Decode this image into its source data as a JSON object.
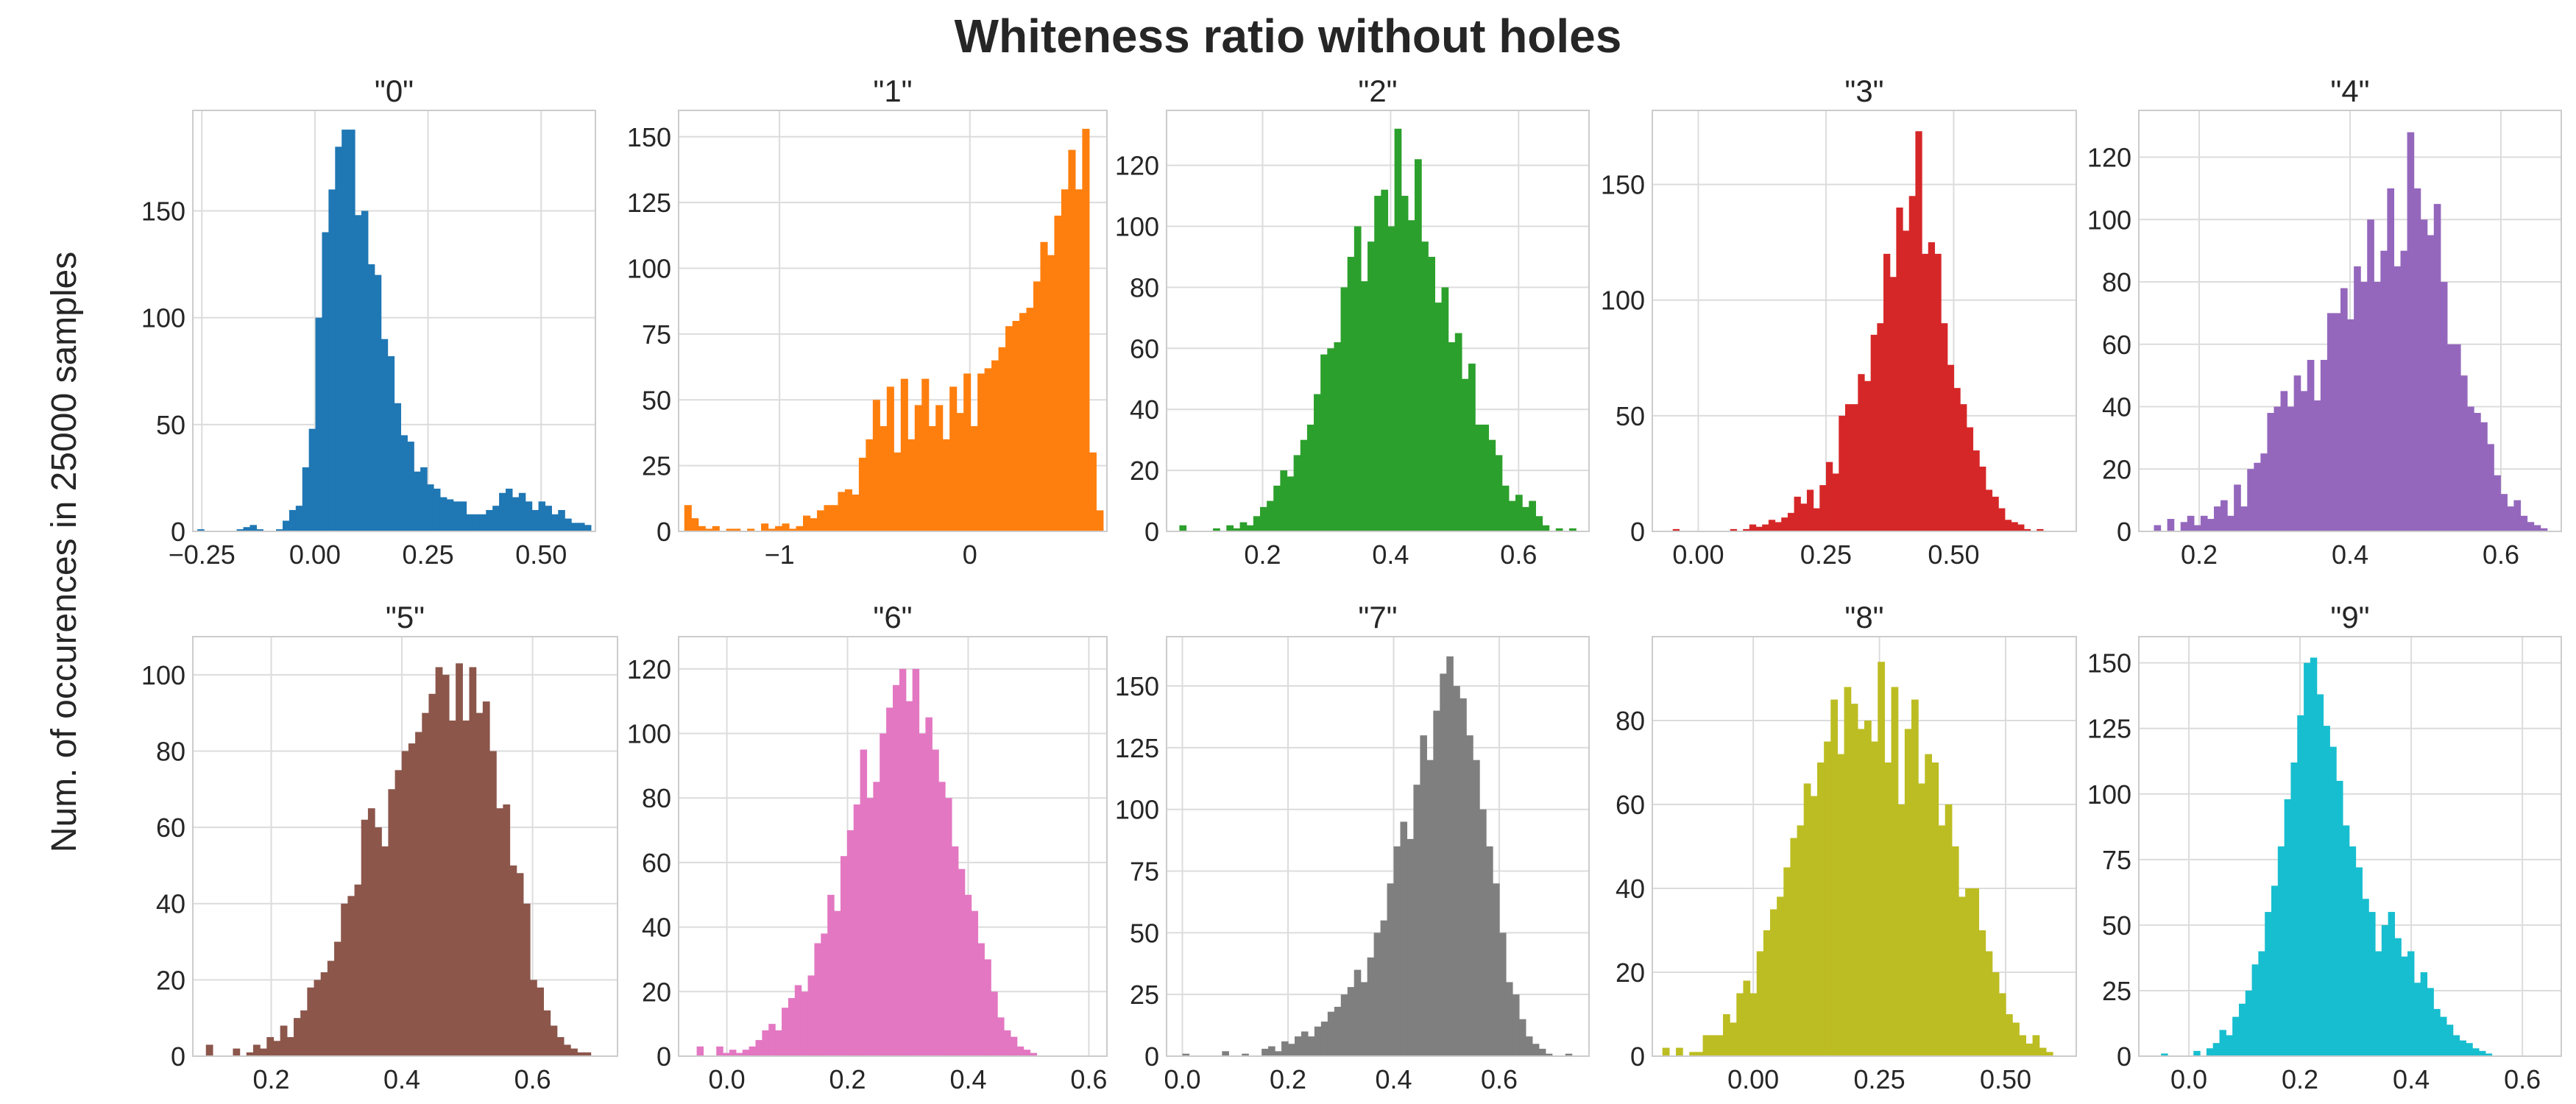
{
  "figure": {
    "title": "Whiteness ratio without holes",
    "ylabel": "Num. of occurences in 25000 samples"
  },
  "chart_data": [
    {
      "type": "bar",
      "title": "\"0\"",
      "color": "#1f77b4",
      "xlim": [
        -0.27,
        0.62
      ],
      "ylim": [
        0,
        197
      ],
      "xticks": [
        -0.25,
        0,
        0.25,
        0.5
      ],
      "xtick_labels": [
        "−0.25",
        "0.00",
        "0.25",
        "0.50"
      ],
      "yticks": [
        0,
        50,
        100,
        150
      ],
      "ytick_labels": [
        "0",
        "50",
        "100",
        "150"
      ],
      "bin_range": [
        -0.26,
        0.61
      ],
      "values": [
        1,
        0,
        0,
        0,
        0,
        0,
        1,
        2,
        3,
        1,
        0,
        0,
        1,
        5,
        10,
        12,
        30,
        48,
        100,
        140,
        160,
        180,
        188,
        188,
        148,
        150,
        125,
        120,
        90,
        82,
        60,
        45,
        42,
        28,
        30,
        22,
        20,
        16,
        15,
        14,
        14,
        8,
        8,
        8,
        10,
        12,
        18,
        20,
        16,
        18,
        14,
        10,
        14,
        12,
        8,
        10,
        6,
        4,
        4,
        3
      ]
    },
    {
      "type": "bar",
      "title": "\"1\"",
      "color": "#ff7f0e",
      "xlim": [
        -1.53,
        0.72
      ],
      "ylim": [
        0,
        160
      ],
      "xticks": [
        -1,
        0
      ],
      "xtick_labels": [
        "−1",
        "0"
      ],
      "yticks": [
        0,
        25,
        50,
        75,
        100,
        125,
        150
      ],
      "ytick_labels": [
        "0",
        "25",
        "50",
        "75",
        "100",
        "125",
        "150"
      ],
      "bin_range": [
        -1.5,
        0.7
      ],
      "values": [
        10,
        5,
        2,
        1,
        2,
        0,
        1,
        1,
        0,
        1,
        0,
        3,
        1,
        2,
        3,
        1,
        2,
        6,
        5,
        8,
        10,
        10,
        15,
        16,
        14,
        28,
        35,
        50,
        40,
        55,
        30,
        58,
        35,
        48,
        58,
        40,
        48,
        35,
        55,
        45,
        60,
        40,
        60,
        62,
        65,
        70,
        78,
        80,
        83,
        85,
        95,
        110,
        105,
        120,
        130,
        145,
        130,
        153,
        30,
        8
      ]
    },
    {
      "type": "bar",
      "title": "\"2\"",
      "color": "#2ca02c",
      "xlim": [
        0.05,
        0.71
      ],
      "ylim": [
        0,
        138
      ],
      "xticks": [
        0.2,
        0.4,
        0.6
      ],
      "xtick_labels": [
        "0.2",
        "0.4",
        "0.6"
      ],
      "yticks": [
        0,
        20,
        40,
        60,
        80,
        100,
        120
      ],
      "ytick_labels": [
        "0",
        "20",
        "40",
        "60",
        "80",
        "100",
        "120"
      ],
      "bin_range": [
        0.07,
        0.7
      ],
      "values": [
        2,
        0,
        0,
        0,
        0,
        1,
        0,
        2,
        1,
        3,
        2,
        5,
        8,
        10,
        15,
        20,
        18,
        25,
        30,
        35,
        45,
        58,
        60,
        62,
        80,
        90,
        100,
        82,
        95,
        110,
        112,
        100,
        132,
        110,
        102,
        122,
        95,
        90,
        75,
        80,
        62,
        65,
        50,
        55,
        35,
        35,
        30,
        25,
        15,
        10,
        12,
        8,
        10,
        5,
        2,
        0,
        1,
        0,
        1,
        0
      ]
    },
    {
      "type": "bar",
      "title": "\"3\"",
      "color": "#d62728",
      "xlim": [
        -0.09,
        0.74
      ],
      "ylim": [
        0,
        182
      ],
      "xticks": [
        0,
        0.25,
        0.5
      ],
      "xtick_labels": [
        "0.00",
        "0.25",
        "0.50"
      ],
      "yticks": [
        0,
        50,
        100,
        150
      ],
      "ytick_labels": [
        "0",
        "50",
        "100",
        "150"
      ],
      "bin_range": [
        -0.05,
        0.7
      ],
      "values": [
        1,
        0,
        0,
        0,
        0,
        0,
        0,
        0,
        0,
        1,
        0,
        1,
        3,
        2,
        3,
        5,
        4,
        6,
        8,
        15,
        12,
        18,
        10,
        20,
        30,
        25,
        50,
        55,
        55,
        68,
        65,
        85,
        90,
        120,
        110,
        140,
        130,
        145,
        173,
        120,
        125,
        120,
        90,
        72,
        62,
        55,
        45,
        35,
        28,
        18,
        15,
        10,
        5,
        4,
        3,
        1,
        0,
        1,
        0,
        0
      ]
    },
    {
      "type": "bar",
      "title": "\"4\"",
      "color": "#9467bd",
      "xlim": [
        0.12,
        0.68
      ],
      "ylim": [
        0,
        135
      ],
      "xticks": [
        0.2,
        0.4,
        0.6
      ],
      "xtick_labels": [
        "0.2",
        "0.4",
        "0.6"
      ],
      "yticks": [
        0,
        20,
        40,
        60,
        80,
        100,
        120
      ],
      "ytick_labels": [
        "0",
        "20",
        "40",
        "60",
        "80",
        "100",
        "120"
      ],
      "bin_range": [
        0.14,
        0.67
      ],
      "values": [
        2,
        0,
        4,
        0,
        3,
        5,
        2,
        5,
        4,
        8,
        10,
        5,
        15,
        8,
        20,
        22,
        25,
        38,
        40,
        45,
        40,
        50,
        45,
        55,
        42,
        55,
        70,
        70,
        78,
        68,
        85,
        80,
        100,
        80,
        90,
        110,
        85,
        90,
        128,
        110,
        100,
        95,
        105,
        80,
        60,
        60,
        50,
        40,
        38,
        35,
        28,
        18,
        12,
        8,
        10,
        5,
        3,
        2,
        1,
        0
      ]
    },
    {
      "type": "bar",
      "title": "\"5\"",
      "color": "#8c564b",
      "xlim": [
        0.08,
        0.73
      ],
      "ylim": [
        0,
        110
      ],
      "xticks": [
        0.2,
        0.4,
        0.6
      ],
      "xtick_labels": [
        "0.2",
        "0.4",
        "0.6"
      ],
      "yticks": [
        0,
        20,
        40,
        60,
        80,
        100
      ],
      "ytick_labels": [
        "0",
        "20",
        "40",
        "60",
        "80",
        "100"
      ],
      "bin_range": [
        0.1,
        0.72
      ],
      "values": [
        3,
        0,
        0,
        0,
        2,
        0,
        1,
        3,
        2,
        5,
        4,
        8,
        5,
        10,
        12,
        18,
        20,
        22,
        25,
        30,
        40,
        42,
        45,
        62,
        65,
        60,
        55,
        70,
        75,
        80,
        82,
        85,
        90,
        95,
        102,
        100,
        88,
        103,
        88,
        102,
        90,
        93,
        80,
        65,
        66,
        50,
        48,
        40,
        20,
        18,
        12,
        8,
        5,
        3,
        2,
        1,
        1,
        0,
        0,
        0
      ]
    },
    {
      "type": "bar",
      "title": "\"6\"",
      "color": "#e377c2",
      "xlim": [
        -0.08,
        0.63
      ],
      "ylim": [
        0,
        130
      ],
      "xticks": [
        0,
        0.2,
        0.4,
        0.6
      ],
      "xtick_labels": [
        "0.0",
        "0.2",
        "0.4",
        "0.6"
      ],
      "yticks": [
        0,
        20,
        40,
        60,
        80,
        100,
        120
      ],
      "ytick_labels": [
        "0",
        "20",
        "40",
        "60",
        "80",
        "100",
        "120"
      ],
      "bin_range": [
        -0.05,
        0.6
      ],
      "values": [
        3,
        0,
        0,
        3,
        1,
        2,
        1,
        2,
        3,
        5,
        8,
        10,
        8,
        15,
        18,
        22,
        20,
        25,
        35,
        38,
        50,
        45,
        62,
        70,
        78,
        95,
        80,
        85,
        100,
        108,
        115,
        120,
        110,
        120,
        100,
        105,
        95,
        85,
        80,
        65,
        58,
        50,
        45,
        35,
        30,
        20,
        12,
        8,
        6,
        3,
        2,
        1,
        0,
        0,
        0,
        0,
        0,
        0,
        0,
        0
      ]
    },
    {
      "type": "bar",
      "title": "\"7\"",
      "color": "#7f7f7f",
      "xlim": [
        -0.03,
        0.77
      ],
      "ylim": [
        0,
        170
      ],
      "xticks": [
        0,
        0.2,
        0.4,
        0.6
      ],
      "xtick_labels": [
        "0.0",
        "0.2",
        "0.4",
        "0.6"
      ],
      "yticks": [
        0,
        25,
        50,
        75,
        100,
        125,
        150
      ],
      "ytick_labels": [
        "0",
        "25",
        "50",
        "75",
        "100",
        "125",
        "150"
      ],
      "bin_range": [
        0,
        0.75
      ],
      "values": [
        1,
        0,
        0,
        0,
        0,
        0,
        2,
        0,
        0,
        1,
        0,
        0,
        3,
        4,
        2,
        6,
        5,
        8,
        10,
        8,
        12,
        14,
        18,
        20,
        25,
        28,
        35,
        30,
        40,
        50,
        55,
        70,
        85,
        95,
        88,
        110,
        130,
        120,
        140,
        155,
        162,
        150,
        145,
        130,
        120,
        100,
        85,
        70,
        50,
        30,
        25,
        15,
        8,
        5,
        3,
        1,
        0,
        0,
        1,
        0
      ]
    },
    {
      "type": "bar",
      "title": "\"8\"",
      "color": "#bcbd22",
      "xlim": [
        -0.2,
        0.64
      ],
      "ylim": [
        0,
        100
      ],
      "xticks": [
        0,
        0.25,
        0.5
      ],
      "xtick_labels": [
        "0.00",
        "0.25",
        "0.50"
      ],
      "yticks": [
        0,
        20,
        40,
        60,
        80
      ],
      "ytick_labels": [
        "0",
        "20",
        "40",
        "60",
        "80"
      ],
      "bin_range": [
        -0.18,
        0.62
      ],
      "values": [
        2,
        0,
        2,
        0,
        1,
        1,
        5,
        5,
        5,
        10,
        8,
        15,
        18,
        15,
        25,
        30,
        35,
        38,
        45,
        52,
        55,
        65,
        62,
        70,
        75,
        85,
        72,
        88,
        84,
        78,
        80,
        75,
        94,
        70,
        88,
        60,
        78,
        85,
        65,
        72,
        70,
        55,
        60,
        50,
        38,
        40,
        40,
        30,
        25,
        20,
        15,
        10,
        8,
        5,
        3,
        5,
        2,
        1,
        0,
        0
      ]
    },
    {
      "type": "bar",
      "title": "\"9\"",
      "color": "#17becf",
      "xlim": [
        -0.09,
        0.67
      ],
      "ylim": [
        0,
        160
      ],
      "xticks": [
        0,
        0.2,
        0.4,
        0.6
      ],
      "xtick_labels": [
        "0.0",
        "0.2",
        "0.4",
        "0.6"
      ],
      "yticks": [
        0,
        25,
        50,
        75,
        100,
        125,
        150
      ],
      "ytick_labels": [
        "0",
        "25",
        "50",
        "75",
        "100",
        "125",
        "150"
      ],
      "bin_range": [
        -0.05,
        0.65
      ],
      "values": [
        1,
        0,
        0,
        0,
        0,
        2,
        0,
        3,
        5,
        10,
        8,
        15,
        20,
        25,
        35,
        40,
        55,
        65,
        80,
        98,
        112,
        130,
        150,
        152,
        138,
        126,
        118,
        105,
        88,
        80,
        72,
        60,
        55,
        40,
        50,
        55,
        45,
        38,
        40,
        28,
        32,
        26,
        18,
        15,
        12,
        8,
        6,
        5,
        3,
        2,
        1,
        0,
        0,
        0,
        0,
        0,
        0,
        0,
        0,
        0
      ]
    }
  ]
}
